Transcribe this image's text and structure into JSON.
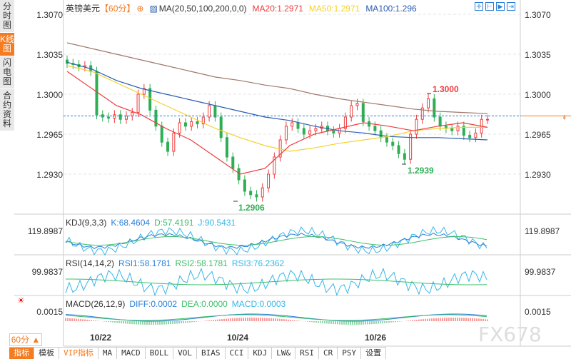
{
  "sidebar": [
    {
      "label": "分时图"
    },
    {
      "label": "K线图",
      "active": true
    },
    {
      "label": "闪电图"
    },
    {
      "label": "合约资料"
    }
  ],
  "header": {
    "symbol": "英镑美元",
    "period": "【60分】",
    "ma_def": "MA(20,50,100,200,0,0)",
    "ma20": "MA20:1.2971",
    "ma50": "MA50:1.2971",
    "ma100": "MA100:1.296"
  },
  "toolbar_icons": [
    "crosshair-icon",
    "zoom-in-icon",
    "zoom-out-icon",
    "scroll-right-icon"
  ],
  "price_axis": [
    "1.3070",
    "1.3035",
    "1.3000",
    "1.2965",
    "1.2930"
  ],
  "annotations": {
    "high": "1.3000",
    "low1": "1.2906",
    "low2": "1.2939"
  },
  "kdj": {
    "title": "KDJ(9,3,3)",
    "k": "K:68.4604",
    "d": "D:57.4191",
    "j": "J:90.5431",
    "axis": "119.8987"
  },
  "rsi": {
    "title": "RSI(14,14,2)",
    "r1": "RSI1:58.1781",
    "r2": "RSI2:58.1781",
    "r3": "RSI3:76.2362",
    "axis": "99.9837"
  },
  "macd": {
    "title": "MACD(26,12,9)",
    "diff": "DIFF:0.0002",
    "dea": "DEA:0.0000",
    "macd": "MACD:0.0003",
    "axis": "0.0015"
  },
  "dates": [
    "10/22",
    "10/24",
    "10/26"
  ],
  "period_select": "60分 ▲",
  "tabs": [
    "指标",
    "模板",
    "VIP指标",
    "MA",
    "MACD",
    "BOLL",
    "VOL",
    "BIAS",
    "CCI",
    "KDJ",
    "LW&",
    "RSI",
    "CR",
    "PSY",
    "设置"
  ],
  "watermark": "FX678",
  "colors": {
    "up": "#ef3b3b",
    "down": "#2fae55",
    "ma20": "#ef3b3b",
    "ma50": "#f5d12a",
    "ma100": "#2a5db0",
    "ma200": "#a0786a",
    "accent": "#f47b20",
    "current_price_line": "#2a7fd8"
  },
  "chart_data": {
    "type": "candlestick",
    "closes": [
      1.3027,
      1.3026,
      1.3024,
      1.3025,
      1.302,
      1.2982,
      1.298,
      1.2979,
      1.2982,
      1.2978,
      1.2981,
      1.2984,
      1.3,
      1.3005,
      1.2986,
      1.2972,
      1.2958,
      1.295,
      1.2966,
      1.2975,
      1.2972,
      1.2976,
      1.2974,
      1.298,
      1.299,
      1.298,
      1.2962,
      1.2945,
      1.2935,
      1.2925,
      1.2915,
      1.2912,
      1.291,
      1.2918,
      1.293,
      1.2945,
      1.296,
      1.2972,
      1.2975,
      1.297,
      1.2965,
      1.2968,
      1.297,
      1.2972,
      1.2968,
      1.2966,
      1.297,
      1.298,
      1.299,
      1.2992,
      1.2976,
      1.2972,
      1.2968,
      1.2962,
      1.2958,
      1.2955,
      1.2948,
      1.2943,
      1.2965,
      1.2978,
      1.2988,
      1.2996,
      1.298,
      1.2972,
      1.297,
      1.2968,
      1.2972,
      1.2964,
      1.2962,
      1.2966,
      1.2978,
      1.2978
    ],
    "ma20": [
      1.302,
      1.3005,
      1.299,
      1.2982,
      1.297,
      1.296,
      1.2945,
      1.293,
      1.2935,
      1.2955,
      1.2965,
      1.297,
      1.2975,
      1.2972,
      1.2968,
      1.2972,
      1.2975,
      1.2971
    ],
    "ma50": [
      1.3025,
      1.302,
      1.301,
      1.3,
      1.299,
      1.298,
      1.297,
      1.2962,
      1.2955,
      1.295,
      1.2953,
      1.2957,
      1.296,
      1.2963,
      1.2968,
      1.297,
      1.2971,
      1.2971
    ],
    "ma100": [
      1.3028,
      1.3022,
      1.3012,
      1.3005,
      1.3,
      1.2995,
      1.299,
      1.2985,
      1.298,
      1.2977,
      1.2972,
      1.2968,
      1.2966,
      1.2963,
      1.2962,
      1.2962,
      1.2961,
      1.296
    ],
    "ma200": [
      1.3045,
      1.304,
      1.3035,
      1.303,
      1.3025,
      1.302,
      1.3015,
      1.3012,
      1.3008,
      1.3005,
      1.3,
      1.2996,
      1.2993,
      1.299,
      1.2987,
      1.2985,
      1.2984,
      1.2983
    ],
    "current_price": 1.2981
  }
}
